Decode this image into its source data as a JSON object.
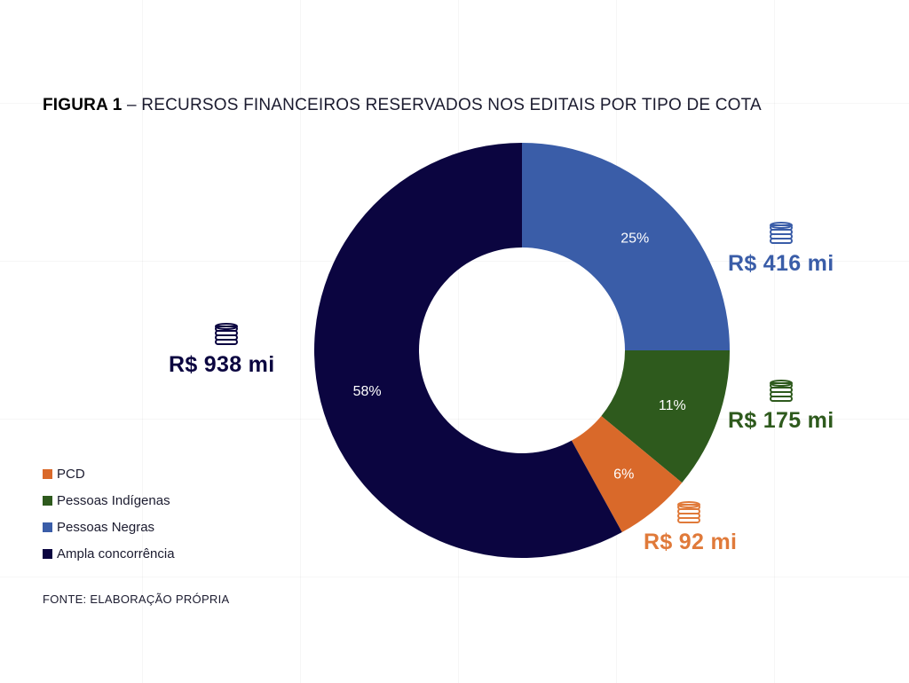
{
  "title": {
    "bold": "FIGURA 1",
    "rest": " – RECURSOS FINANCEIROS RESERVADOS NOS EDITAIS POR TIPO DE COTA"
  },
  "source": "FONTE: ELABORAÇÃO PRÓPRIA",
  "chart_data": {
    "type": "pie",
    "donut": true,
    "categories": [
      "Pessoas Negras",
      "Pessoas Indígenas",
      "PCD",
      "Ampla concorrência"
    ],
    "values": [
      25,
      11,
      6,
      58
    ],
    "percent_labels": [
      "25%",
      "11%",
      "6%",
      "58%"
    ],
    "amount_labels": [
      "R$ 416 mi",
      "R$ 175 mi",
      "R$ 92 mi",
      "R$ 938 mi"
    ],
    "colors": [
      "#3a5da8",
      "#2e5a1d",
      "#d9692a",
      "#0b0540"
    ],
    "legend": {
      "position": "bottom-left",
      "entries": [
        {
          "label": "PCD",
          "color": "#d9692a"
        },
        {
          "label": "Pessoas Indígenas",
          "color": "#2e5a1d"
        },
        {
          "label": "Pessoas Negras",
          "color": "#3a5da8"
        },
        {
          "label": "Ampla concorrência",
          "color": "#0b0540"
        }
      ]
    },
    "label_colors": {
      "Pessoas Negras": "#3a5da8",
      "Pessoas Indígenas": "#2e5a1d",
      "PCD": "#e07a3a",
      "Ampla concorrência": "#0b0540"
    },
    "icons": [
      "coin-stack-icon",
      "coin-stack-icon",
      "coin-stack-icon",
      "coin-stack-icon"
    ]
  }
}
